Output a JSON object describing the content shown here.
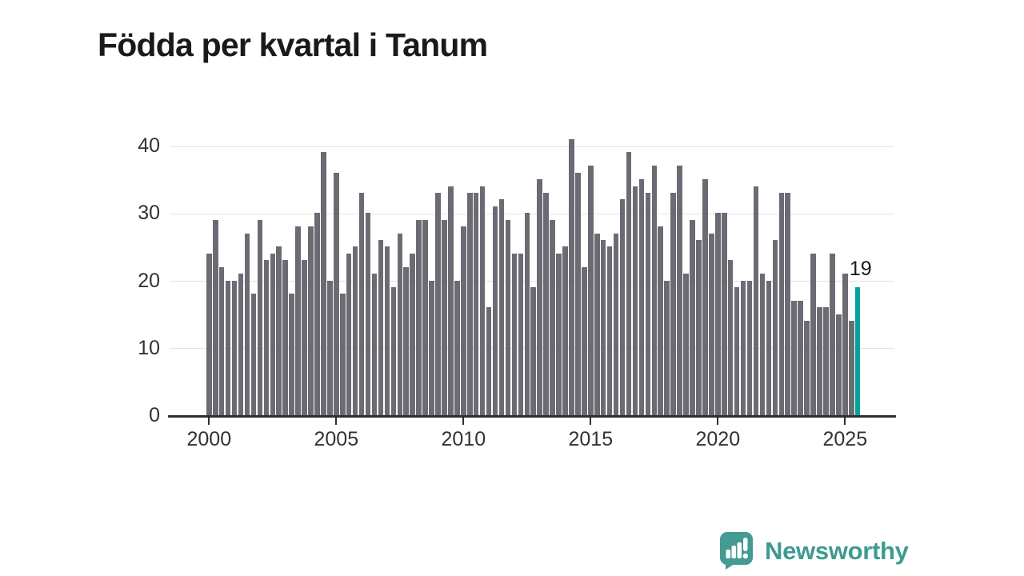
{
  "title": "Födda per kvartal i Tanum",
  "annotation_label": "19",
  "branding": {
    "name": "Newsworthy"
  },
  "colors": {
    "bar": "#6c6b73",
    "highlight": "#00a39e",
    "axis": "#2f2f2f",
    "grid": "#e3e3e3",
    "tick_text": "#333333",
    "title_text": "#1a1a1a",
    "brand": "#3f9a91"
  },
  "chart_data": {
    "type": "bar",
    "title": "Födda per kvartal i Tanum",
    "xlabel": "",
    "ylabel": "",
    "ylim": [
      0,
      40
    ],
    "yticks": [
      0,
      10,
      20,
      30,
      40
    ],
    "xtick_years": [
      "2000",
      "2005",
      "2010",
      "2015",
      "2020",
      "2025"
    ],
    "grid": true,
    "legend": false,
    "series": [
      {
        "name": "Födda per kvartal",
        "start_quarter": "2000 Q1",
        "end_quarter": "2025 Q3",
        "values_by_year": {
          "2000": [
            24,
            29,
            22,
            20
          ],
          "2001": [
            20,
            21,
            27,
            18
          ],
          "2002": [
            29,
            23,
            24,
            25
          ],
          "2003": [
            23,
            18,
            28,
            23
          ],
          "2004": [
            28,
            30,
            39,
            20
          ],
          "2005": [
            36,
            18,
            24,
            25
          ],
          "2006": [
            33,
            30,
            21,
            26
          ],
          "2007": [
            25,
            19,
            27,
            22
          ],
          "2008": [
            24,
            29,
            29,
            20
          ],
          "2009": [
            33,
            29,
            34,
            20
          ],
          "2010": [
            28,
            33,
            33,
            34
          ],
          "2011": [
            16,
            31,
            32,
            29
          ],
          "2012": [
            24,
            24,
            30,
            19
          ],
          "2013": [
            35,
            33,
            29,
            24
          ],
          "2014": [
            25,
            41,
            36,
            22
          ],
          "2015": [
            37,
            27,
            26,
            25
          ],
          "2016": [
            27,
            32,
            39,
            34
          ],
          "2017": [
            35,
            33,
            37,
            28
          ],
          "2018": [
            20,
            33,
            37,
            21
          ],
          "2019": [
            29,
            26,
            35,
            27
          ],
          "2020": [
            30,
            30,
            23,
            19
          ],
          "2021": [
            20,
            20,
            34,
            21
          ],
          "2022": [
            20,
            26,
            33,
            33
          ],
          "2023": [
            17,
            17,
            14,
            24
          ],
          "2024": [
            16,
            16,
            24,
            15
          ],
          "2025": [
            21,
            14,
            19
          ]
        }
      }
    ],
    "highlight": {
      "quarter": "2025 Q3",
      "value": 19
    }
  }
}
